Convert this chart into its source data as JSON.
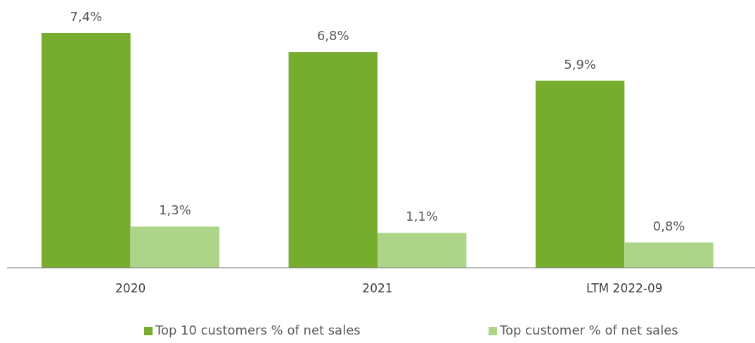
{
  "chart_data": {
    "type": "bar",
    "categories": [
      "2020",
      "2021",
      "LTM 2022-09"
    ],
    "series": [
      {
        "name": "Top 10 customers % of net sales",
        "color": "#76ad2f",
        "values": [
          7.4,
          6.8,
          5.9
        ],
        "value_labels": [
          "7,4%",
          "6,8%",
          "5,9%"
        ]
      },
      {
        "name": "Top customer % of net sales",
        "color": "#add58a",
        "values": [
          1.3,
          1.1,
          0.8
        ],
        "value_labels": [
          "1,3%",
          "1,1%",
          "0,8%"
        ]
      }
    ],
    "legend": "bottom"
  }
}
